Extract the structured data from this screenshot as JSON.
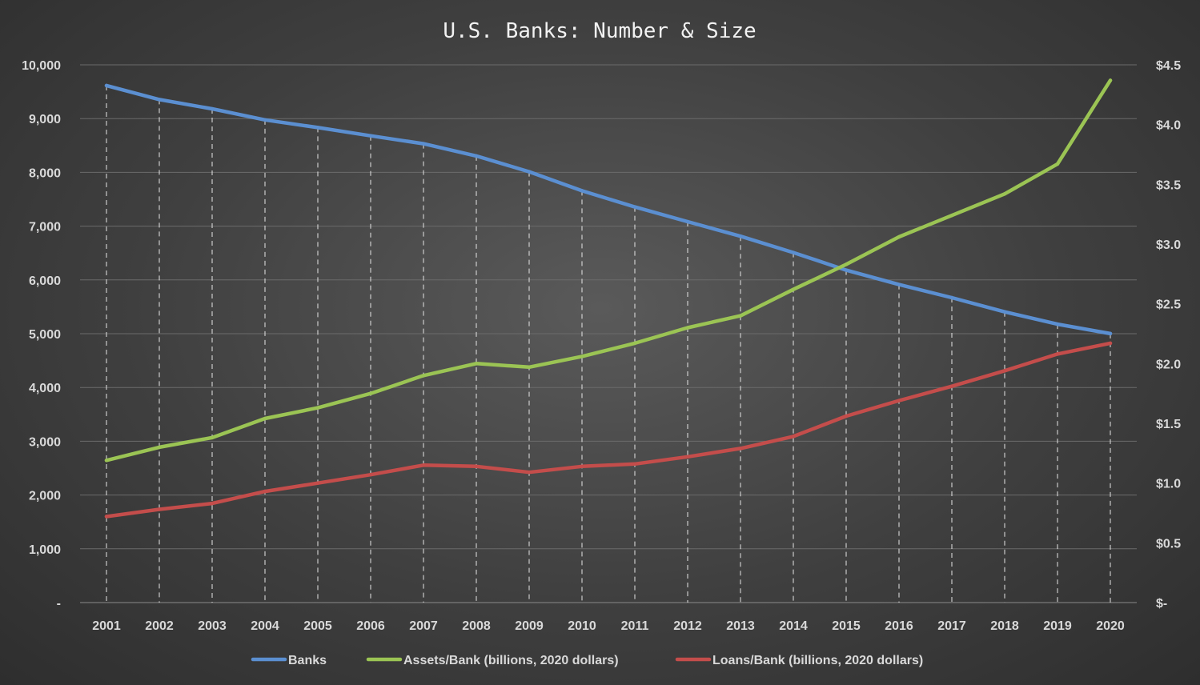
{
  "chart_data": {
    "type": "line",
    "title": "U.S. Banks: Number & Size",
    "categories": [
      "2001",
      "2002",
      "2003",
      "2004",
      "2005",
      "2006",
      "2007",
      "2008",
      "2009",
      "2010",
      "2011",
      "2012",
      "2013",
      "2014",
      "2015",
      "2016",
      "2017",
      "2018",
      "2019",
      "2020"
    ],
    "y_left": {
      "min": 0,
      "max": 10000,
      "step": 1000,
      "tick_labels": [
        "-",
        "1,000",
        "2,000",
        "3,000",
        "4,000",
        "5,000",
        "6,000",
        "7,000",
        "8,000",
        "9,000",
        "10,000"
      ]
    },
    "y_right": {
      "min": 0,
      "max": 4.5,
      "step": 0.5,
      "tick_labels": [
        "$-",
        "$0.5",
        "$1.0",
        "$1.5",
        "$2.0",
        "$2.5",
        "$3.0",
        "$3.5",
        "$4.0",
        "$4.5"
      ]
    },
    "series": [
      {
        "name": "Banks",
        "axis": "left",
        "color": "#5b8fd1",
        "values": [
          9614,
          9354,
          9181,
          8976,
          8833,
          8680,
          8533,
          8305,
          8012,
          7658,
          7357,
          7083,
          6812,
          6509,
          6182,
          5913,
          5670,
          5406,
          5177,
          5002
        ]
      },
      {
        "name": "Assets/Bank (billions, 2020 dollars)",
        "axis": "right",
        "color": "#9bc454",
        "values": [
          1.19,
          1.3,
          1.38,
          1.54,
          1.63,
          1.75,
          1.9,
          2.0,
          1.97,
          2.06,
          2.17,
          2.3,
          2.4,
          2.62,
          2.83,
          3.06,
          3.24,
          3.42,
          3.67,
          4.37
        ]
      },
      {
        "name": "Loans/Bank (billions, 2020 dollars)",
        "axis": "right",
        "color": "#c44d4b",
        "values": [
          0.72,
          0.78,
          0.83,
          0.93,
          1.0,
          1.07,
          1.15,
          1.14,
          1.09,
          1.14,
          1.16,
          1.22,
          1.29,
          1.39,
          1.56,
          1.69,
          1.81,
          1.94,
          2.08,
          2.17
        ]
      }
    ],
    "grid": "horizontal solid, vertical dashed per category",
    "legend": "bottom"
  }
}
